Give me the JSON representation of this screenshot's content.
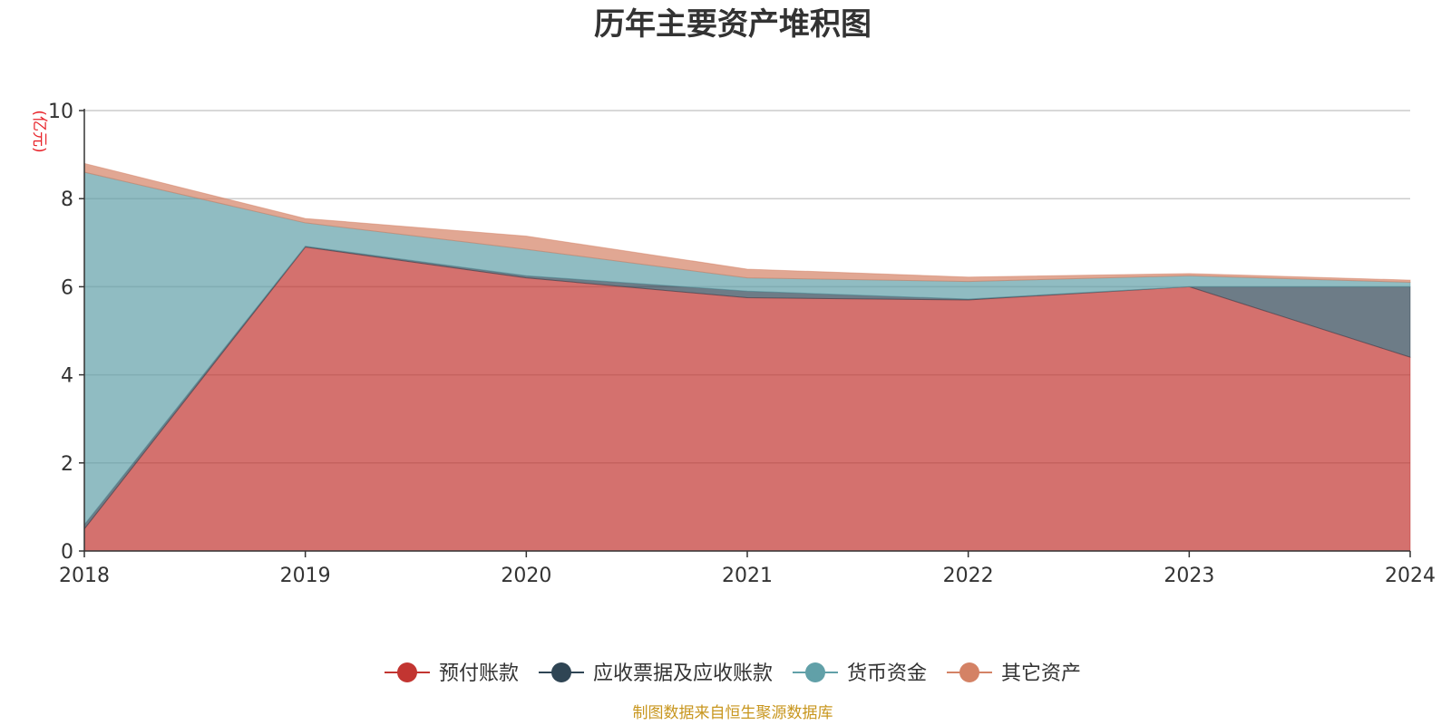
{
  "chart_data": {
    "type": "area",
    "stacked": true,
    "title": "历年主要资产堆积图",
    "unit_label": "(亿元)",
    "x": [
      "2018",
      "2019",
      "2020",
      "2021",
      "2022",
      "2023",
      "2024"
    ],
    "y_ticks": [
      "0",
      "2",
      "4",
      "6",
      "8",
      "10"
    ],
    "ylim": [
      0,
      10
    ],
    "grid": true,
    "legend_position": "bottom",
    "series": [
      {
        "name": "预付账款",
        "color": "#c23531",
        "values": [
          0.5,
          6.9,
          6.2,
          5.75,
          5.7,
          6.0,
          4.4
        ]
      },
      {
        "name": "应收票据及应收账款",
        "color": "#2f4554",
        "values": [
          0.1,
          0.02,
          0.05,
          0.15,
          0.02,
          0.0,
          1.6
        ]
      },
      {
        "name": "货币资金",
        "color": "#61a0a8",
        "values": [
          8.0,
          0.53,
          0.6,
          0.3,
          0.4,
          0.25,
          0.1
        ]
      },
      {
        "name": "其它资产",
        "color": "#d48265",
        "values": [
          0.2,
          0.1,
          0.3,
          0.2,
          0.1,
          0.05,
          0.05
        ]
      }
    ]
  },
  "footer": {
    "source": "制图数据来自恒生聚源数据库"
  }
}
